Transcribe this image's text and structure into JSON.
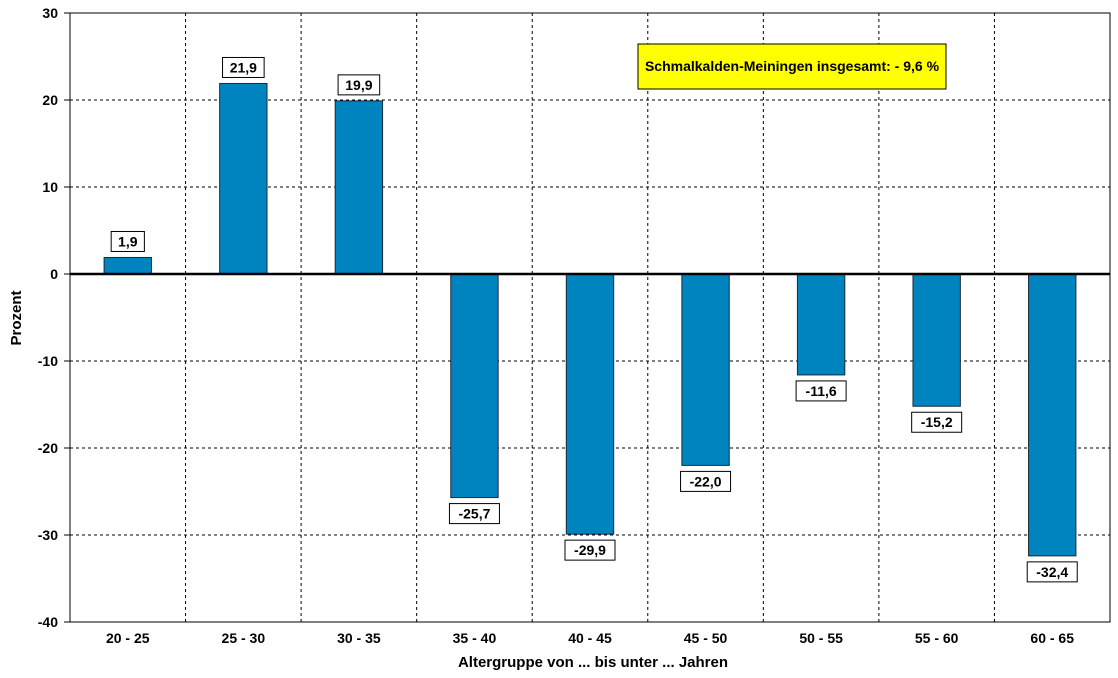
{
  "chart_data": {
    "type": "bar",
    "categories": [
      "20 - 25",
      "25 - 30",
      "30 - 35",
      "35 - 40",
      "40 - 45",
      "45 - 50",
      "50 - 55",
      "55 - 60",
      "60 - 65"
    ],
    "values": [
      1.9,
      21.9,
      19.9,
      -25.7,
      -29.9,
      -22.0,
      -11.6,
      -15.2,
      -32.4
    ],
    "value_labels": [
      "1,9",
      "21,9",
      "19,9",
      "-25,7",
      "-29,9",
      "-22,0",
      "-11,6",
      "-15,2",
      "-32,4"
    ],
    "xlabel": "Altergruppe von ... bis unter ... Jahren",
    "ylabel": "Prozent",
    "ylim": [
      -40,
      30
    ],
    "yticks": [
      30,
      20,
      10,
      0,
      -10,
      -20,
      -30,
      -40
    ],
    "ytick_labels": [
      "30",
      "20",
      "10",
      "0",
      "-10",
      "-20",
      "-30",
      "-40"
    ],
    "grid": true,
    "annotation": "Schmalkalden-Meiningen insgesamt: - 9,6 %",
    "colors": {
      "bar": "#0084BF",
      "bar_edge": "#1a2a36",
      "annotation_bg": "#FFFF00",
      "grid": "#000000"
    }
  }
}
